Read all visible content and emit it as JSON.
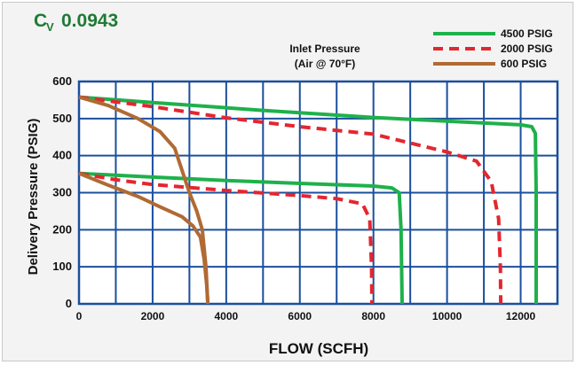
{
  "chart_data": {
    "type": "line",
    "title_main": "C",
    "title_sub": "V",
    "title_value": "0.0943",
    "annotation_line1": "Inlet Pressure",
    "annotation_line2": "(Air @ 70°F)",
    "xlabel": "FLOW (SCFH)",
    "ylabel": "Delivery Pressure (PSIG)",
    "xlim": [
      0,
      13000
    ],
    "ylim": [
      0,
      600
    ],
    "xticks": [
      0,
      2000,
      4000,
      6000,
      8000,
      10000,
      12000
    ],
    "yticks": [
      0,
      100,
      200,
      300,
      400,
      500,
      600
    ],
    "x_grid_step": 1000,
    "y_grid_step": 100,
    "grid": true,
    "legend_position": "top-right",
    "colors": {
      "grid": "#1b4f9e",
      "s4500": "#1eb14b",
      "s2000": "#e4262f",
      "s600": "#b06a34",
      "title": "#1f7a35",
      "background": "#f3f3f3"
    },
    "series": [
      {
        "name": "4500 PSIG",
        "color": "#1eb14b",
        "dash": "solid",
        "curves": [
          [
            [
              0,
              558
            ],
            [
              2000,
              543
            ],
            [
              5000,
              522
            ],
            [
              8000,
              503
            ],
            [
              10000,
              493
            ],
            [
              12000,
              483
            ],
            [
              12300,
              478
            ],
            [
              12400,
              460
            ],
            [
              12420,
              300
            ],
            [
              12420,
              0
            ]
          ],
          [
            [
              0,
              352
            ],
            [
              2000,
              342
            ],
            [
              4000,
              333
            ],
            [
              6000,
              325
            ],
            [
              8000,
              318
            ],
            [
              8500,
              313
            ],
            [
              8700,
              300
            ],
            [
              8750,
              200
            ],
            [
              8780,
              0
            ]
          ]
        ]
      },
      {
        "name": "2000 PSIG",
        "color": "#e4262f",
        "dash": "dashed",
        "curves": [
          [
            [
              0,
              558
            ],
            [
              2000,
              532
            ],
            [
              4000,
              502
            ],
            [
              6000,
              478
            ],
            [
              8000,
              458
            ],
            [
              10000,
              410
            ],
            [
              10800,
              385
            ],
            [
              11200,
              330
            ],
            [
              11400,
              230
            ],
            [
              11450,
              100
            ],
            [
              11460,
              0
            ]
          ],
          [
            [
              0,
              352
            ],
            [
              1000,
              335
            ],
            [
              2000,
              322
            ],
            [
              4000,
              306
            ],
            [
              6000,
              292
            ],
            [
              7000,
              284
            ],
            [
              7700,
              270
            ],
            [
              7900,
              230
            ],
            [
              7950,
              100
            ],
            [
              7960,
              0
            ]
          ]
        ]
      },
      {
        "name": "600 PSIG",
        "color": "#b06a34",
        "dash": "solid",
        "curves": [
          [
            [
              0,
              558
            ],
            [
              800,
              535
            ],
            [
              1600,
              500
            ],
            [
              2200,
              465
            ],
            [
              2600,
              420
            ],
            [
              2800,
              360
            ],
            [
              3000,
              300
            ],
            [
              3200,
              250
            ],
            [
              3350,
              200
            ],
            [
              3450,
              100
            ],
            [
              3500,
              0
            ]
          ],
          [
            [
              0,
              352
            ],
            [
              800,
              320
            ],
            [
              1600,
              290
            ],
            [
              2200,
              262
            ],
            [
              2800,
              235
            ],
            [
              3100,
              210
            ],
            [
              3300,
              180
            ],
            [
              3400,
              120
            ],
            [
              3470,
              50
            ],
            [
              3500,
              0
            ]
          ]
        ]
      }
    ]
  }
}
